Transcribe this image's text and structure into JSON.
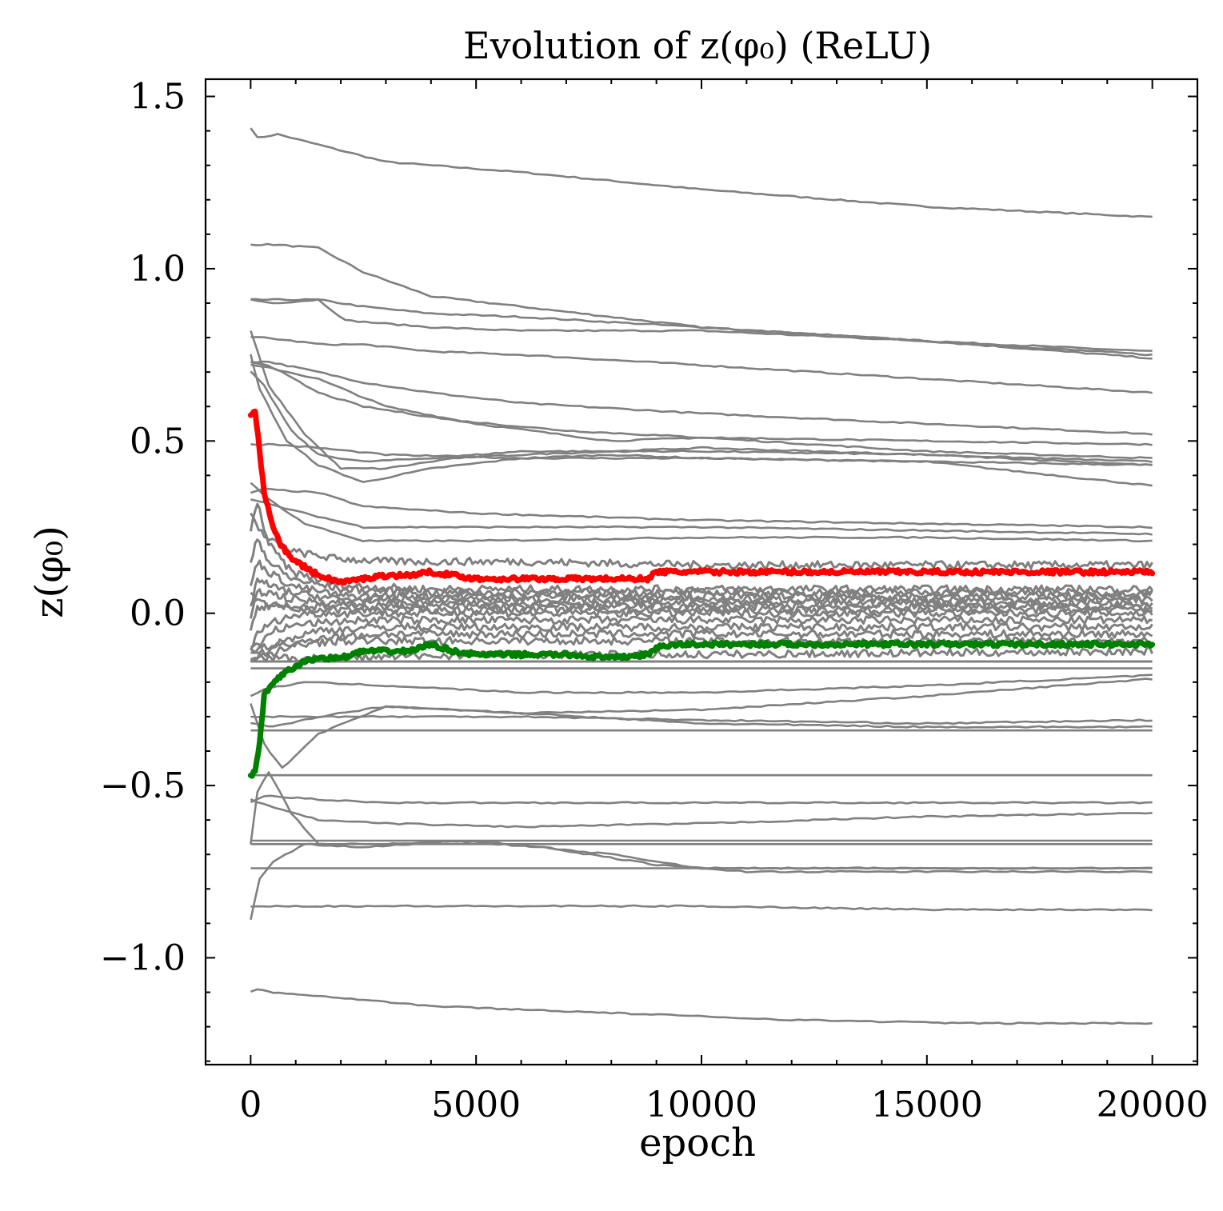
{
  "chart_data": {
    "type": "line",
    "title": "Evolution of z(φ₀) (ReLU)",
    "xlabel": "epoch",
    "ylabel": "z(φ₀)",
    "xlim": [
      -1000,
      21000
    ],
    "ylim": [
      -1.31,
      1.55
    ],
    "xticks": [
      0,
      5000,
      10000,
      15000,
      20000
    ],
    "xtick_labels": [
      "0",
      "5000",
      "10000",
      "15000",
      "20000"
    ],
    "yticks": [
      -1.0,
      -0.5,
      0.0,
      0.5,
      1.0,
      1.5
    ],
    "ytick_labels": [
      "−1.0",
      "−0.5",
      "0.0",
      "0.5",
      "1.0",
      "1.5"
    ],
    "grid": false,
    "colors": {
      "highlight_top": "#ff0000",
      "highlight_bottom": "#008000",
      "other": "#808080"
    },
    "gray_series": [
      {
        "name": "n01",
        "x": [
          0,
          150,
          600,
          1500,
          3000,
          6000,
          10000,
          15000,
          20000
        ],
        "values": [
          1.41,
          1.38,
          1.39,
          1.36,
          1.31,
          1.28,
          1.23,
          1.18,
          1.15
        ]
      },
      {
        "name": "n02",
        "x": [
          0,
          500,
          1500,
          2500,
          4000,
          6000,
          10000,
          15000,
          20000
        ],
        "values": [
          1.07,
          1.07,
          1.06,
          0.99,
          0.92,
          0.89,
          0.83,
          0.79,
          0.76
        ]
      },
      {
        "name": "n03",
        "x": [
          0,
          500,
          1500,
          2500,
          4000,
          6000,
          10000,
          15000,
          20000
        ],
        "values": [
          0.91,
          0.91,
          0.91,
          0.89,
          0.87,
          0.86,
          0.83,
          0.79,
          0.75
        ]
      },
      {
        "name": "n04",
        "x": [
          0,
          500,
          1500,
          2100,
          4000,
          6000,
          10000,
          15000,
          20000
        ],
        "values": [
          0.91,
          0.9,
          0.91,
          0.85,
          0.83,
          0.82,
          0.82,
          0.79,
          0.74
        ]
      },
      {
        "name": "n05",
        "x": [
          0,
          300,
          1600,
          2500,
          4000,
          6000,
          10000,
          15000,
          20000
        ],
        "values": [
          0.8,
          0.8,
          0.78,
          0.78,
          0.76,
          0.75,
          0.72,
          0.68,
          0.64
        ]
      },
      {
        "name": "n06",
        "x": [
          0,
          400,
          1500,
          2500,
          4000,
          6000,
          10000,
          15000,
          20000
        ],
        "values": [
          0.73,
          0.73,
          0.7,
          0.67,
          0.64,
          0.61,
          0.58,
          0.55,
          0.52
        ]
      },
      {
        "name": "n07",
        "x": [
          0,
          500,
          1500,
          3000,
          5000,
          8000,
          10000,
          15000,
          20000
        ],
        "values": [
          0.72,
          0.71,
          0.68,
          0.6,
          0.55,
          0.5,
          0.51,
          0.47,
          0.45
        ]
      },
      {
        "name": "n08",
        "x": [
          0,
          200,
          800,
          1500,
          2500,
          4000,
          6000,
          8000,
          10000,
          15000,
          20000
        ],
        "values": [
          0.75,
          0.65,
          0.5,
          0.43,
          0.38,
          0.42,
          0.45,
          0.46,
          0.45,
          0.44,
          0.37
        ]
      },
      {
        "name": "n09",
        "x": [
          0,
          300,
          900,
          1500,
          2500,
          4000,
          6000,
          8000,
          10000,
          15000,
          20000
        ],
        "values": [
          0.7,
          0.66,
          0.53,
          0.46,
          0.44,
          0.45,
          0.47,
          0.47,
          0.47,
          0.46,
          0.43
        ]
      },
      {
        "name": "n10",
        "x": [
          0,
          400,
          1200,
          2000,
          3000,
          4500,
          6000,
          8000,
          10000,
          15000,
          20000
        ],
        "values": [
          0.82,
          0.66,
          0.52,
          0.42,
          0.42,
          0.45,
          0.46,
          0.47,
          0.48,
          0.46,
          0.44
        ]
      },
      {
        "name": "n11",
        "x": [
          0,
          400,
          1500,
          2500,
          4500,
          7000,
          10000,
          15000,
          20000
        ],
        "values": [
          0.73,
          0.72,
          0.64,
          0.6,
          0.56,
          0.53,
          0.51,
          0.5,
          0.49
        ]
      },
      {
        "name": "n12",
        "x": [
          0,
          500,
          1500,
          3000,
          6000,
          10000,
          15000,
          20000
        ],
        "values": [
          0.49,
          0.49,
          0.48,
          0.46,
          0.45,
          0.45,
          0.44,
          0.43
        ]
      },
      {
        "name": "n13",
        "x": [
          0,
          300,
          1500,
          2500,
          5000,
          10000,
          15000,
          20000
        ],
        "values": [
          0.35,
          0.36,
          0.35,
          0.31,
          0.29,
          0.27,
          0.26,
          0.25
        ]
      },
      {
        "name": "n14",
        "x": [
          0,
          300,
          1200,
          2500,
          5000,
          10000,
          15000,
          20000
        ],
        "values": [
          0.33,
          0.32,
          0.29,
          0.25,
          0.25,
          0.25,
          0.24,
          0.23
        ]
      },
      {
        "name": "n15",
        "x": [
          0,
          300,
          1200,
          2500,
          5000,
          10000,
          15000,
          20000
        ],
        "values": [
          0.38,
          0.34,
          0.26,
          0.21,
          0.21,
          0.22,
          0.22,
          0.21
        ]
      },
      {
        "name": "n16",
        "x": [
          0,
          300,
          900,
          1800,
          3000,
          6000,
          10000,
          20000
        ],
        "values": [
          0.29,
          0.22,
          0.18,
          0.16,
          0.15,
          0.15,
          0.14,
          0.14
        ]
      },
      {
        "name": "n17",
        "x": [
          0,
          150,
          400,
          900,
          2000,
          4000,
          8000,
          20000
        ],
        "values": [
          0.24,
          0.32,
          0.2,
          0.12,
          0.08,
          0.07,
          0.07,
          0.07
        ]
      },
      {
        "name": "n18",
        "x": [
          0,
          150,
          400,
          900,
          2000,
          4000,
          8000,
          20000
        ],
        "values": [
          0.14,
          0.22,
          0.15,
          0.1,
          0.07,
          0.06,
          0.06,
          0.06
        ]
      },
      {
        "name": "n19",
        "x": [
          0,
          150,
          400,
          900,
          2000,
          4000,
          8000,
          20000
        ],
        "values": [
          0.08,
          0.15,
          0.12,
          0.08,
          0.05,
          0.05,
          0.05,
          0.05
        ]
      },
      {
        "name": "n20",
        "x": [
          0,
          150,
          400,
          900,
          2000,
          4000,
          8000,
          20000
        ],
        "values": [
          0.02,
          0.1,
          0.08,
          0.06,
          0.04,
          0.04,
          0.04,
          0.04
        ]
      },
      {
        "name": "n21",
        "x": [
          0,
          150,
          400,
          900,
          2000,
          4000,
          8000,
          20000
        ],
        "values": [
          -0.02,
          0.06,
          0.06,
          0.04,
          0.03,
          0.03,
          0.03,
          0.03
        ]
      },
      {
        "name": "n22",
        "x": [
          0,
          150,
          400,
          900,
          2000,
          4000,
          8000,
          20000
        ],
        "values": [
          0.06,
          0.04,
          0.03,
          0.02,
          0.02,
          0.02,
          0.02,
          0.02
        ]
      },
      {
        "name": "n23",
        "x": [
          0,
          150,
          400,
          900,
          2000,
          4000,
          8000,
          20000
        ],
        "values": [
          -0.05,
          0.01,
          0.02,
          0.01,
          0.01,
          0.01,
          0.01,
          0.01
        ]
      },
      {
        "name": "n24",
        "x": [
          0,
          200,
          600,
          1200,
          2500,
          5000,
          10000,
          20000
        ],
        "values": [
          -0.1,
          -0.05,
          -0.02,
          0.0,
          0.0,
          0.0,
          0.0,
          0.0
        ]
      },
      {
        "name": "n25",
        "x": [
          0,
          150,
          500,
          1200,
          2500,
          5000,
          10000,
          20000
        ],
        "values": [
          -0.11,
          -0.1,
          -0.05,
          -0.03,
          -0.02,
          -0.02,
          -0.02,
          -0.02
        ]
      },
      {
        "name": "n26",
        "x": [
          0,
          200,
          700,
          1500,
          3000,
          6000,
          10000,
          20000
        ],
        "values": [
          -0.13,
          -0.12,
          -0.08,
          -0.05,
          -0.04,
          -0.04,
          -0.04,
          -0.04
        ]
      },
      {
        "name": "n27",
        "x": [
          0,
          300,
          800,
          1500,
          3000,
          6000,
          10000,
          20000
        ],
        "values": [
          -0.14,
          -0.13,
          -0.1,
          -0.07,
          -0.06,
          -0.06,
          -0.06,
          -0.06
        ]
      },
      {
        "name": "n28",
        "x": [
          0,
          300,
          1000,
          2000,
          4000,
          8000,
          20000
        ],
        "values": [
          -0.09,
          -0.1,
          -0.09,
          -0.08,
          -0.08,
          -0.08,
          -0.08
        ]
      },
      {
        "name": "n29",
        "x": [
          0,
          500,
          2000,
          5000,
          10000,
          20000
        ],
        "values": [
          -0.12,
          -0.13,
          -0.13,
          -0.12,
          -0.12,
          -0.11
        ]
      },
      {
        "name": "n30",
        "x": [
          0,
          20000
        ],
        "values": [
          -0.14,
          -0.14
        ]
      },
      {
        "name": "n31",
        "x": [
          0,
          20000
        ],
        "values": [
          -0.16,
          -0.16
        ]
      },
      {
        "name": "n32",
        "x": [
          0,
          300,
          1200,
          3000,
          6000,
          10000,
          15000,
          20000
        ],
        "values": [
          -0.24,
          -0.22,
          -0.2,
          -0.21,
          -0.23,
          -0.23,
          -0.21,
          -0.18
        ]
      },
      {
        "name": "n33",
        "x": [
          0,
          500,
          1500,
          3000,
          6000,
          10000,
          15000,
          20000
        ],
        "values": [
          -0.32,
          -0.33,
          -0.3,
          -0.27,
          -0.29,
          -0.28,
          -0.24,
          -0.19
        ]
      },
      {
        "name": "n34",
        "x": [
          0,
          500,
          1500,
          3000,
          6000,
          10000,
          15000,
          20000
        ],
        "values": [
          -0.3,
          -0.3,
          -0.3,
          -0.3,
          -0.3,
          -0.31,
          -0.32,
          -0.31
        ]
      },
      {
        "name": "n35",
        "x": [
          0,
          300,
          700,
          1500,
          3000,
          6000,
          10000,
          15000,
          20000
        ],
        "values": [
          -0.26,
          -0.38,
          -0.45,
          -0.35,
          -0.27,
          -0.29,
          -0.32,
          -0.33,
          -0.33
        ]
      },
      {
        "name": "n36",
        "x": [
          0,
          20000
        ],
        "values": [
          -0.34,
          -0.34
        ]
      },
      {
        "name": "n37",
        "x": [
          0,
          20000
        ],
        "values": [
          -0.47,
          -0.47
        ]
      },
      {
        "name": "n38",
        "x": [
          0,
          300,
          1500,
          3000,
          6000,
          10000,
          15000,
          20000
        ],
        "values": [
          -0.55,
          -0.53,
          -0.54,
          -0.55,
          -0.55,
          -0.55,
          -0.55,
          -0.55
        ]
      },
      {
        "name": "n39",
        "x": [
          0,
          400,
          1500,
          3000,
          6000,
          10000,
          15000,
          20000
        ],
        "values": [
          -0.54,
          -0.56,
          -0.6,
          -0.61,
          -0.62,
          -0.61,
          -0.59,
          -0.58
        ]
      },
      {
        "name": "n40",
        "x": [
          0,
          20000
        ],
        "values": [
          -0.66,
          -0.66
        ]
      },
      {
        "name": "n41",
        "x": [
          0,
          20000
        ],
        "values": [
          -0.67,
          -0.67
        ]
      },
      {
        "name": "n42",
        "x": [
          0,
          150,
          400,
          900,
          1500,
          3000,
          5000,
          8000,
          10000,
          15000,
          20000
        ],
        "values": [
          -0.67,
          -0.52,
          -0.46,
          -0.58,
          -0.67,
          -0.67,
          -0.66,
          -0.7,
          -0.74,
          -0.74,
          -0.74
        ]
      },
      {
        "name": "n43",
        "x": [
          0,
          200,
          500,
          1200,
          2500,
          4500,
          6500,
          9000,
          11000,
          15000,
          20000
        ],
        "values": [
          -0.89,
          -0.77,
          -0.72,
          -0.67,
          -0.68,
          -0.66,
          -0.68,
          -0.73,
          -0.75,
          -0.75,
          -0.75
        ]
      },
      {
        "name": "n44",
        "x": [
          0,
          20000
        ],
        "values": [
          -0.74,
          -0.74
        ]
      },
      {
        "name": "n45",
        "x": [
          0,
          2000,
          6000,
          10000,
          15000,
          20000
        ],
        "values": [
          -0.85,
          -0.85,
          -0.85,
          -0.85,
          -0.86,
          -0.86
        ]
      },
      {
        "name": "n46",
        "x": [
          0,
          150,
          500,
          1500,
          4000,
          8000,
          12000,
          16000,
          20000
        ],
        "values": [
          -1.1,
          -1.09,
          -1.1,
          -1.11,
          -1.14,
          -1.16,
          -1.18,
          -1.19,
          -1.19
        ]
      }
    ],
    "series": [
      {
        "name": "red",
        "color": "#ff0000",
        "x": [
          0,
          100,
          200,
          300,
          500,
          700,
          1000,
          1500,
          2000,
          2500,
          3000,
          3500,
          4000,
          4500,
          5000,
          6000,
          7000,
          8000,
          8800,
          9000,
          9500,
          10000,
          12000,
          14000,
          16000,
          18000,
          20000
        ],
        "values": [
          0.58,
          0.59,
          0.47,
          0.35,
          0.25,
          0.19,
          0.15,
          0.11,
          0.09,
          0.1,
          0.11,
          0.11,
          0.12,
          0.11,
          0.1,
          0.1,
          0.1,
          0.1,
          0.1,
          0.12,
          0.12,
          0.12,
          0.12,
          0.12,
          0.12,
          0.12,
          0.12
        ]
      },
      {
        "name": "green",
        "color": "#008000",
        "x": [
          0,
          100,
          200,
          300,
          500,
          800,
          1200,
          1500,
          2000,
          2500,
          3000,
          3500,
          4000,
          4500,
          5000,
          6000,
          7000,
          8000,
          8800,
          9000,
          9500,
          10000,
          12000,
          14000,
          16000,
          18000,
          20000
        ],
        "values": [
          -0.47,
          -0.46,
          -0.38,
          -0.24,
          -0.2,
          -0.17,
          -0.14,
          -0.13,
          -0.13,
          -0.11,
          -0.11,
          -0.11,
          -0.09,
          -0.11,
          -0.12,
          -0.12,
          -0.12,
          -0.13,
          -0.12,
          -0.1,
          -0.09,
          -0.09,
          -0.09,
          -0.09,
          -0.09,
          -0.09,
          -0.09
        ]
      }
    ]
  }
}
